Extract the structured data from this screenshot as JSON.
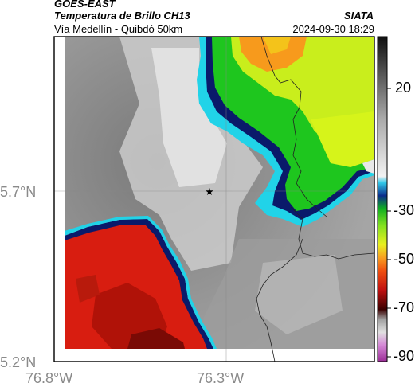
{
  "header": {
    "satellite": "GOES-EAST",
    "product": "Temperatura de Brillo CH13",
    "route": "Vía Medellín - Quibdó 50km",
    "agency": "SIATA",
    "timestamp": "2024-09-30 18:29"
  },
  "map": {
    "lat_ticks": [
      "5.7°N",
      "5.2°N"
    ],
    "lon_ticks": [
      "76.8°W",
      "76.3°W"
    ],
    "marker": "star-marker",
    "colors": {
      "gray_light": "#e6e6e6",
      "gray_mid": "#9a9a9a",
      "gray_dark": "#6e6e6e",
      "red": "#d81d10",
      "dark_red": "#8a0a05",
      "cyan": "#21d3e8",
      "navy": "#0a1a6a",
      "green": "#1ec61e",
      "yellow": "#d6f41a",
      "orange": "#f79a1c"
    }
  },
  "colorbar": {
    "labels": [
      "20",
      "-30",
      "-50",
      "-70",
      "-90"
    ]
  }
}
